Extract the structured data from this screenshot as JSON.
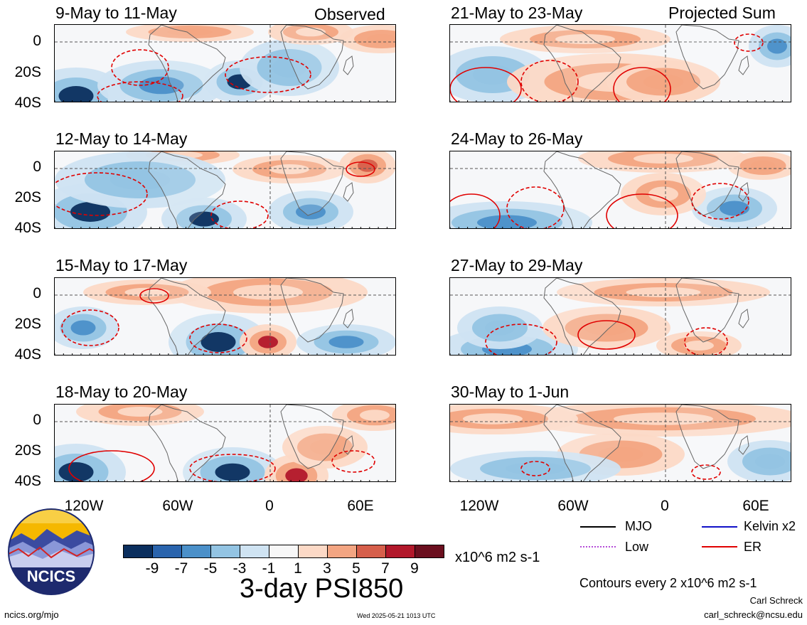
{
  "header": {
    "observed_label": "Observed",
    "projected_label": "Projected Sum"
  },
  "panels": {
    "left": [
      {
        "title": "9-May to 11-May"
      },
      {
        "title": "12-May to 14-May"
      },
      {
        "title": "15-May to 17-May"
      },
      {
        "title": "18-May to 20-May"
      }
    ],
    "right": [
      {
        "title": "21-May to 23-May"
      },
      {
        "title": "24-May to 26-May"
      },
      {
        "title": "27-May to 29-May"
      },
      {
        "title": "30-May to 1-Jun"
      }
    ]
  },
  "axes": {
    "y_ticks": [
      "0",
      "20S",
      "40S"
    ],
    "x_ticks": [
      "120W",
      "60W",
      "0",
      "60E"
    ]
  },
  "colorbar": {
    "colors": [
      "#0b2f5e",
      "#2a64ad",
      "#4b90c9",
      "#93c4e3",
      "#cfe3f2",
      "#f7f7f7",
      "#fcd9c6",
      "#f3a582",
      "#d65f4b",
      "#b2182b",
      "#6b0f1f"
    ],
    "ticks": [
      "-9",
      "-7",
      "-5",
      "-3",
      "-1",
      "1",
      "3",
      "5",
      "7",
      "9"
    ],
    "units": "x10^6 m2 s-1",
    "title": "3-day PSI850"
  },
  "legend": {
    "items": [
      {
        "label": "MJO",
        "color": "#000000"
      },
      {
        "label": "Kelvin x2",
        "color": "#1010c8"
      },
      {
        "label": "Low",
        "color": "#b44cd8"
      },
      {
        "label": "ER",
        "color": "#e00000"
      }
    ],
    "contours_note": "Contours every 2 x10^6 m2 s-1"
  },
  "logo": {
    "text": "NCICS"
  },
  "footer": {
    "site": "ncics.org/mjo",
    "timestamp": "Wed 2025-05-21 1013 UTC",
    "author": "Carl Schreck",
    "email": "carl_schreck@ncsu.edu"
  }
}
